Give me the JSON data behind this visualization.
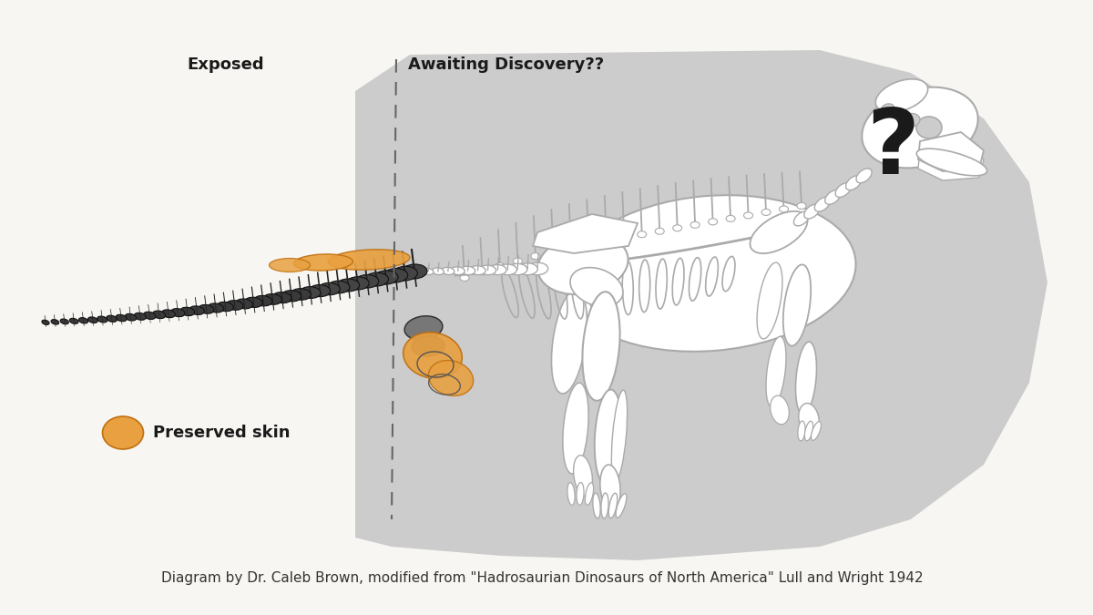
{
  "bg_color": "#f7f6f2",
  "gray_region_color": "#cccccc",
  "white": "#ffffff",
  "bone_edge": "#aaaaaa",
  "dark_bone": "#333333",
  "dark_bone2": "#555555",
  "skin_color": "#e8a040",
  "skin_edge": "#c07010",
  "dashed_color": "#666666",
  "text_dark": "#1a1a1a",
  "label_exposed": "Exposed",
  "label_awaiting": "Awaiting Discovery??",
  "label_skin": "Preserved skin",
  "label_q": "?",
  "caption": "Diagram by Dr. Caleb Brown, modified from \"Hadrosaurian Dinosaurs of North America\" Lull and Wright 1942",
  "caption_fs": 11,
  "label_fs": 13,
  "q_fs": 72
}
